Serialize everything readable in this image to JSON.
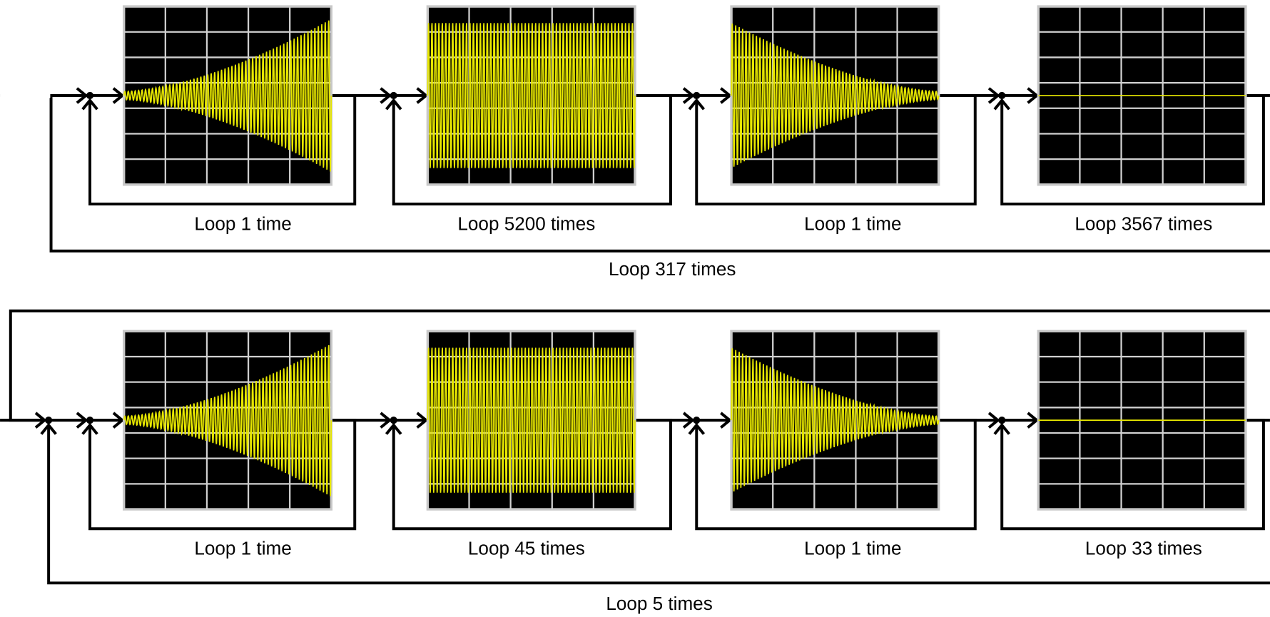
{
  "rows": [
    {
      "segments": [
        {
          "label": "Loop 1 time"
        },
        {
          "label": "Loop 5200 times"
        },
        {
          "label": "Loop 1 time"
        },
        {
          "label": "Loop 3567 times"
        }
      ],
      "outer_label": "Loop 317 times"
    },
    {
      "segments": [
        {
          "label": "Loop 1 time"
        },
        {
          "label": "Loop 45 times"
        },
        {
          "label": "Loop 1 time"
        },
        {
          "label": "Loop 33 times"
        }
      ],
      "outer_label": "Loop 5 times"
    }
  ]
}
